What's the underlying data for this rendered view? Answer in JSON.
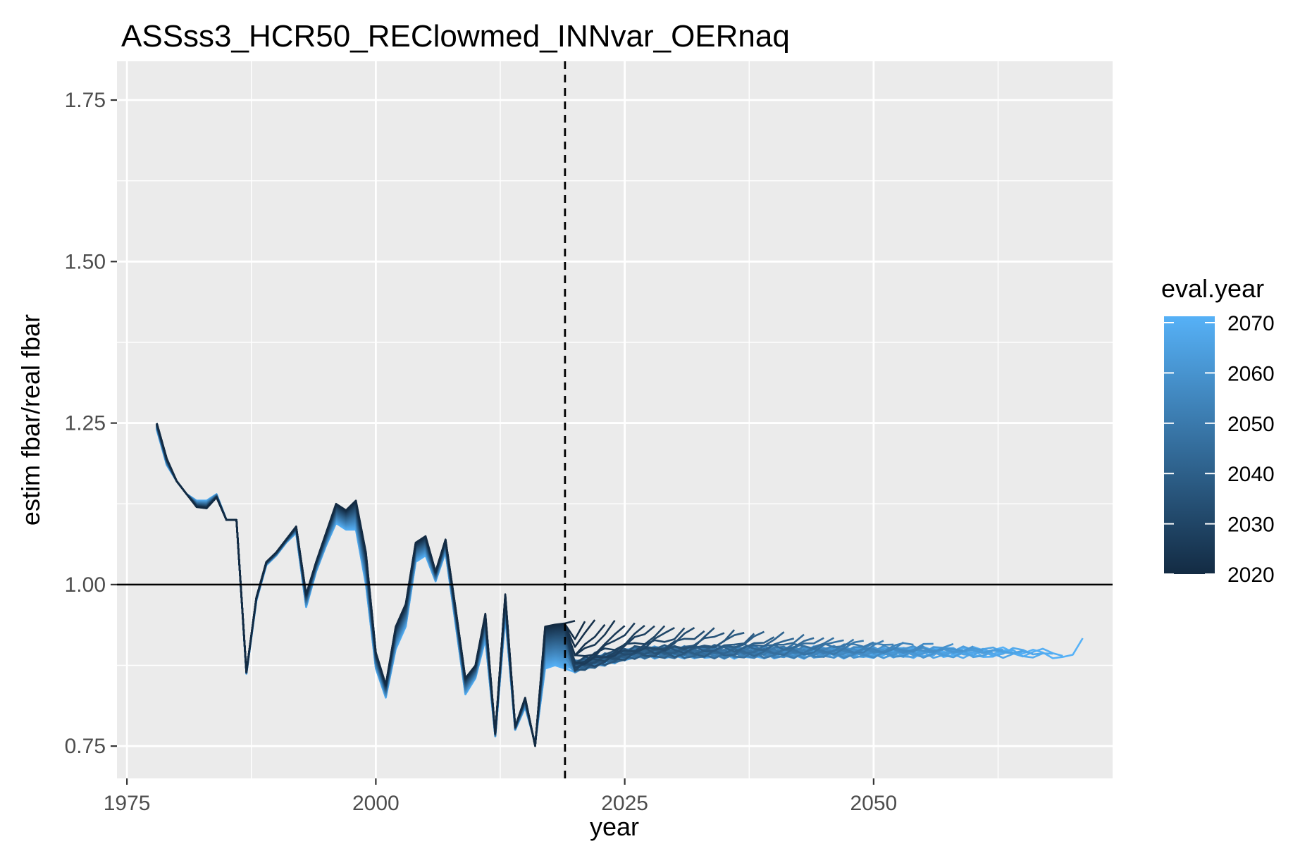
{
  "chart_data": {
    "type": "line",
    "title": "ASSss3_HCR50_REClowmed_INNvar_OERnaq",
    "xlabel": "year",
    "ylabel": "estim fbar/real fbar",
    "xlim": [
      1974,
      2074
    ],
    "ylim": [
      0.7,
      1.81
    ],
    "x_ticks": [
      1975,
      2000,
      2025,
      2050
    ],
    "x_tick_labels": [
      "1975",
      "2000",
      "2025",
      "2050"
    ],
    "y_ticks": [
      0.75,
      1.0,
      1.25,
      1.5,
      1.75
    ],
    "y_tick_labels": [
      "0.75",
      "1.00",
      "1.25",
      "1.50",
      "1.75"
    ],
    "grid": true,
    "background": "#ebebeb",
    "reference_hline": 1.0,
    "reference_vline_dashed": 2019,
    "legend": {
      "title": "eval.year",
      "position": "right",
      "type": "colorbar",
      "min": 2020,
      "max": 2070,
      "labels": [
        "2070",
        "2060",
        "2050",
        "2040",
        "2030",
        "2020"
      ],
      "color_low": "#132b43",
      "color_high": "#56b1f7"
    },
    "eval_years": [
      2020,
      2021,
      2022,
      2023,
      2024,
      2025,
      2026,
      2027,
      2028,
      2029,
      2030,
      2031,
      2032,
      2033,
      2034,
      2035,
      2036,
      2037,
      2038,
      2039,
      2040,
      2041,
      2042,
      2043,
      2044,
      2045,
      2046,
      2047,
      2048,
      2049,
      2050,
      2051,
      2052,
      2053,
      2054,
      2055,
      2056,
      2057,
      2058,
      2059,
      2060,
      2061,
      2062,
      2063,
      2064,
      2065,
      2066,
      2067,
      2068,
      2069,
      2070
    ],
    "historical_x": [
      1978,
      1979,
      1980,
      1981,
      1982,
      1983,
      1984,
      1985,
      1986,
      1987,
      1988,
      1989,
      1990,
      1991,
      1992,
      1993,
      1994,
      1995,
      1996,
      1997,
      1998,
      1999,
      2000,
      2001,
      2002,
      2003,
      2004,
      2005,
      2006,
      2007,
      2008,
      2009,
      2010,
      2011,
      2012,
      2013,
      2014,
      2015,
      2016,
      2017,
      2018
    ],
    "historical_y_first_eval": [
      1.25,
      1.195,
      1.16,
      1.14,
      1.12,
      1.118,
      1.135,
      1.1,
      1.1,
      0.865,
      0.98,
      1.035,
      1.05,
      1.07,
      1.09,
      0.985,
      1.035,
      1.08,
      1.125,
      1.115,
      1.13,
      1.05,
      0.895,
      0.845,
      0.935,
      0.97,
      1.065,
      1.075,
      1.02,
      1.07,
      0.965,
      0.855,
      0.875,
      0.955,
      0.77,
      0.985,
      0.78,
      0.825,
      0.75,
      0.935,
      0.938
    ],
    "historical_y_last_eval": [
      1.24,
      1.185,
      1.16,
      1.14,
      1.13,
      1.13,
      1.14,
      1.1,
      1.1,
      0.862,
      0.975,
      1.03,
      1.045,
      1.065,
      1.08,
      0.965,
      1.02,
      1.06,
      1.095,
      1.085,
      1.085,
      1.0,
      0.87,
      0.825,
      0.9,
      0.935,
      1.035,
      1.045,
      1.005,
      1.05,
      0.94,
      0.83,
      0.855,
      0.915,
      0.765,
      0.95,
      0.775,
      0.81,
      0.755,
      0.87,
      0.875
    ],
    "projection_start_y_first_eval": 0.94,
    "projection_start_y_last_eval": 0.87,
    "projection_level_first_eval": 0.945,
    "projection_level_last_eval": 0.89,
    "final_line_end_x": 2070,
    "final_line_end_y": 0.917
  }
}
